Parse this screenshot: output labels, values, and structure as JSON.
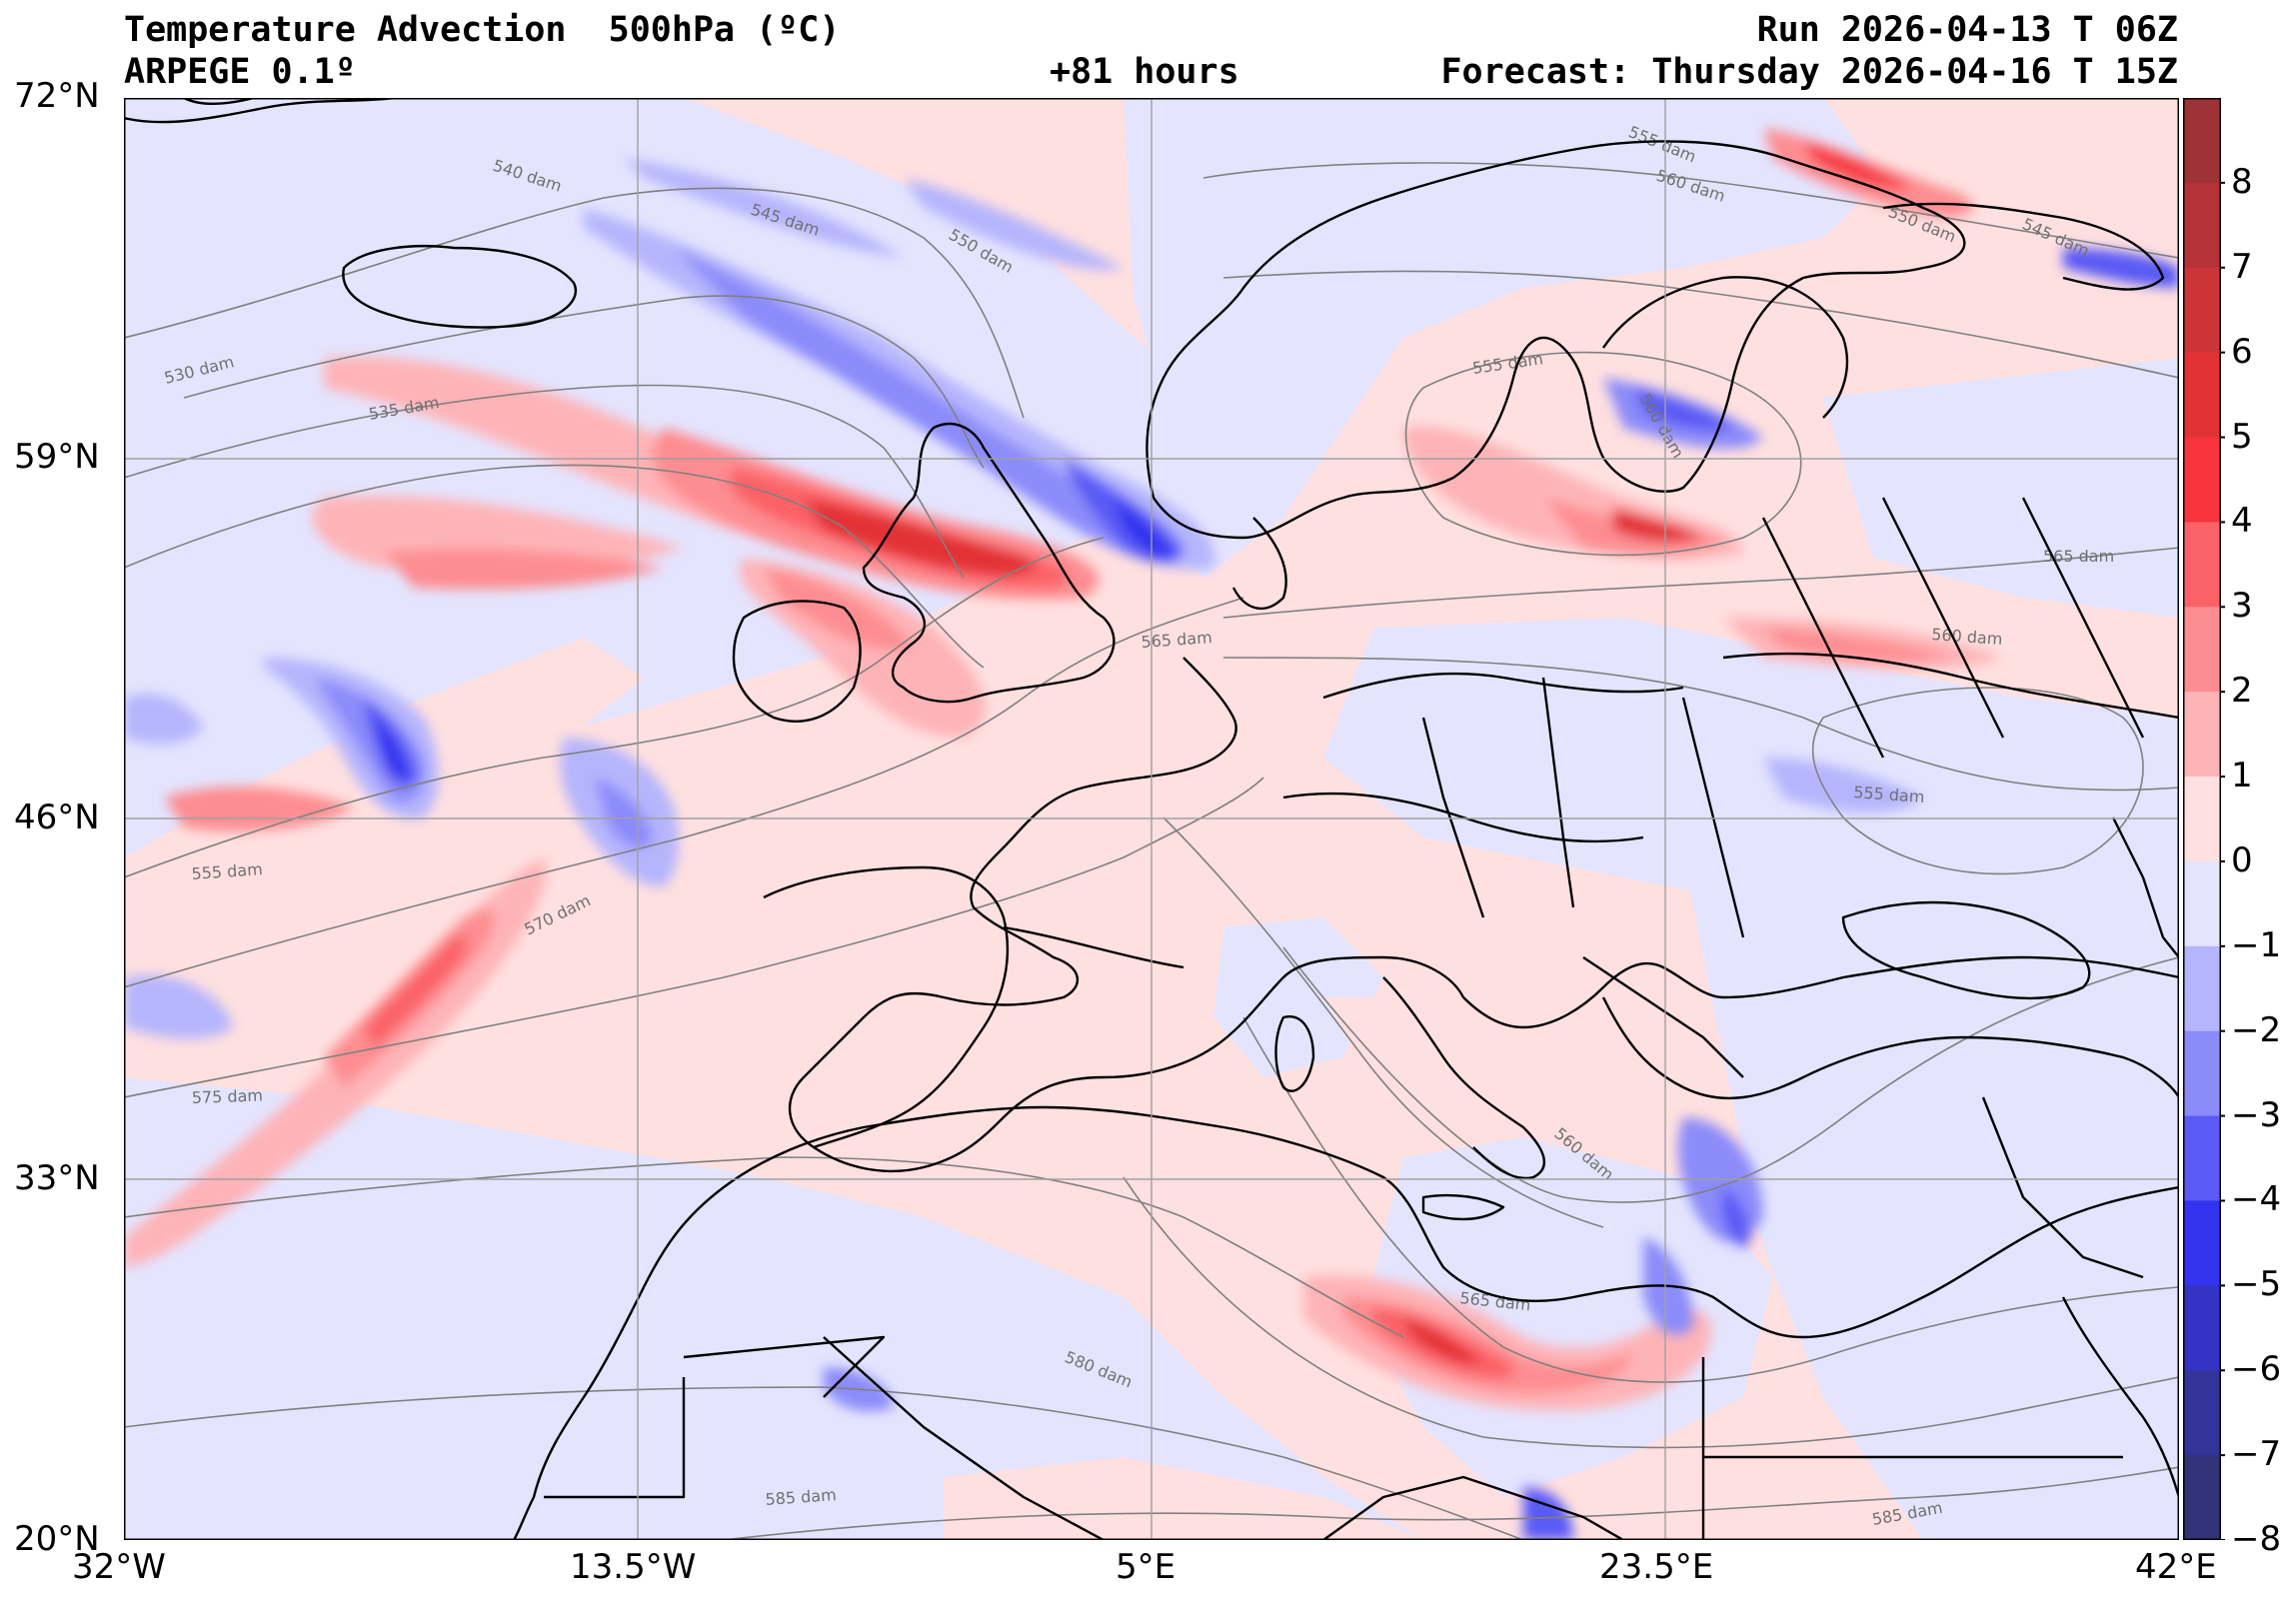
{
  "title": {
    "main": "Temperature Advection  500hPa (ºC)",
    "model": "ARPEGE 0.1º",
    "lead": "+81 hours",
    "run": "Run 2026-04-13 T 06Z",
    "forecast": "Forecast: Thursday 2026-04-16 T 15Z"
  },
  "axes": {
    "lat_labels": [
      "72°N",
      "59°N",
      "46°N",
      "33°N",
      "20°N"
    ],
    "lon_labels": [
      "32°W",
      "13.5°W",
      "5°E",
      "23.5°E",
      "42°E"
    ],
    "lat_range": [
      20,
      72
    ],
    "lon_range": [
      -32,
      42
    ]
  },
  "colorbar": {
    "ticks": [
      "8",
      "7",
      "6",
      "5",
      "4",
      "3",
      "2",
      "1",
      "0",
      "−1",
      "−2",
      "−3",
      "−4",
      "−5",
      "−6",
      "−7",
      "−8"
    ],
    "colors_top_to_bottom": [
      "#9e3337",
      "#b53238",
      "#cc3438",
      "#e33236",
      "#f7333c",
      "#fb6268",
      "#fd8d91",
      "#feb4b7",
      "#ffe0e0",
      "#e4e4fe",
      "#b5b5fd",
      "#8b8bfa",
      "#5a5af6",
      "#3333f0",
      "#3333c5",
      "#333399",
      "#33337a"
    ]
  },
  "contours": {
    "labels": [
      "540 dam",
      "545 dam",
      "550 dam",
      "530 dam",
      "535 dam",
      "555 dam",
      "560 dam",
      "550 dam",
      "545 dam",
      "555 dam",
      "560 dam",
      "565 dam",
      "565 dam",
      "560 dam",
      "555 dam",
      "555 dam",
      "570 dam",
      "575 dam",
      "560 dam",
      "565 dam",
      "580 dam",
      "585 dam",
      "585 dam"
    ]
  },
  "colors": {
    "background_warm": "#ffe0e0",
    "background_cold": "#e4e4fe",
    "coast": "#000000",
    "grid": "#a0a0a0",
    "contour": "#808080"
  }
}
